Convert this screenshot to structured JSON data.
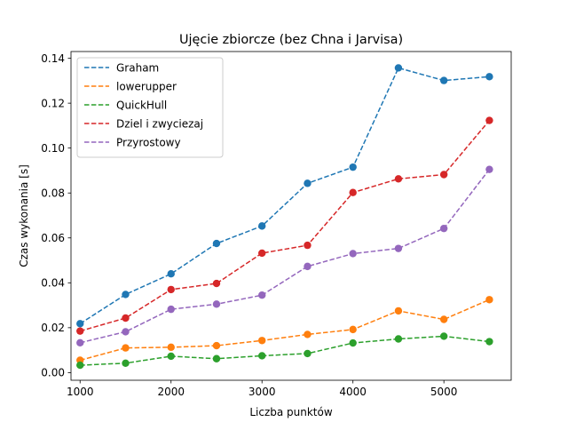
{
  "chart_data": {
    "type": "line",
    "title": "Ujęcie zbiorcze (bez Chna i Jarvisa)",
    "xlabel": "Liczba punktów",
    "ylabel": "Czas wykonania [s]",
    "xlim": [
      900,
      5740
    ],
    "ylim": [
      -0.0034,
      0.143
    ],
    "xticks": [
      1000,
      2000,
      3000,
      4000,
      5000
    ],
    "xtick_labels": [
      "1000",
      "2000",
      "3000",
      "4000",
      "5000"
    ],
    "yticks": [
      0.0,
      0.02,
      0.04,
      0.06,
      0.08,
      0.1,
      0.12,
      0.14
    ],
    "ytick_labels": [
      "0.00",
      "0.02",
      "0.04",
      "0.06",
      "0.08",
      "0.10",
      "0.12",
      "0.14"
    ],
    "grid": false,
    "legend_position": "top-left",
    "x": [
      1000,
      1500,
      2000,
      2500,
      3000,
      3500,
      4000,
      4500,
      5000,
      5500
    ],
    "series": [
      {
        "name": "Graham",
        "color": "#1f77b4",
        "line_style": "dashed",
        "marker": "circle",
        "values": [
          0.0218,
          0.0348,
          0.044,
          0.0575,
          0.0653,
          0.0843,
          0.0915,
          0.1357,
          0.1301,
          0.1318
        ]
      },
      {
        "name": "lowerupper",
        "color": "#ff7f0e",
        "line_style": "dashed",
        "marker": "circle",
        "values": [
          0.0055,
          0.011,
          0.0113,
          0.012,
          0.0143,
          0.017,
          0.0192,
          0.0275,
          0.0237,
          0.0325
        ]
      },
      {
        "name": "QuickHull",
        "color": "#2ca02c",
        "line_style": "dashed",
        "marker": "circle",
        "values": [
          0.0033,
          0.0042,
          0.0073,
          0.0062,
          0.0075,
          0.0085,
          0.0132,
          0.015,
          0.0162,
          0.0138
        ]
      },
      {
        "name": "Dziel i zwyciezaj",
        "color": "#d62728",
        "line_style": "dashed",
        "marker": "circle",
        "values": [
          0.0185,
          0.0243,
          0.037,
          0.0397,
          0.0532,
          0.0567,
          0.0802,
          0.0863,
          0.0882,
          0.1123
        ]
      },
      {
        "name": "Przyrostowy",
        "color": "#9467bd",
        "line_style": "dashed",
        "marker": "circle",
        "values": [
          0.0133,
          0.0182,
          0.0282,
          0.0305,
          0.0345,
          0.0473,
          0.053,
          0.0553,
          0.0642,
          0.0905
        ]
      }
    ]
  }
}
